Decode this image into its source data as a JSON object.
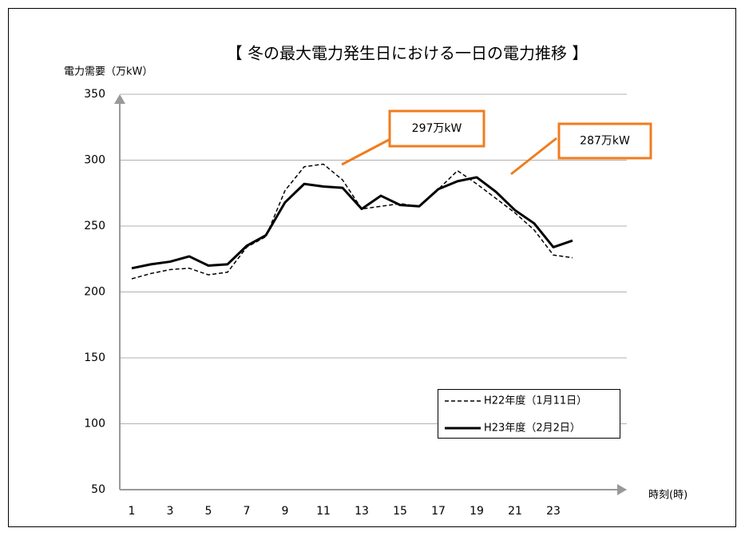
{
  "chart_data": {
    "type": "line",
    "title": "【 冬の最大電力発生日における一日の電力推移 】",
    "y_label": "電力需要（万kW）",
    "x_label": "時刻(時)",
    "categories": [
      "1",
      null,
      "3",
      null,
      "5",
      null,
      "7",
      null,
      "9",
      null,
      "11",
      null,
      "13",
      null,
      "15",
      null,
      "17",
      null,
      "19",
      null,
      "21",
      null,
      "23",
      null
    ],
    "series": [
      {
        "name": "H22年度（1月11日）",
        "color": "#000000",
        "dash": true,
        "values": [
          210,
          214,
          217,
          218,
          213,
          215,
          234,
          242,
          277,
          295,
          297,
          285,
          263,
          265,
          267,
          265,
          278,
          292,
          282,
          271,
          260,
          247,
          228,
          226
        ]
      },
      {
        "name": "H23年度（2月2日）",
        "color": "#000000",
        "dash": false,
        "values": [
          218,
          221,
          223,
          227,
          220,
          221,
          235,
          243,
          268,
          282,
          280,
          279,
          263,
          273,
          266,
          265,
          278,
          284,
          287,
          276,
          262,
          252,
          234,
          239
        ]
      }
    ],
    "annotations": [
      "297万kW",
      "287万kW"
    ],
    "annotation_color": "#f07c1f",
    "ylim": [
      50,
      350
    ],
    "yticks": [
      50,
      100,
      150,
      200,
      250,
      300,
      350
    ],
    "grid": true,
    "legend": "lower right"
  }
}
